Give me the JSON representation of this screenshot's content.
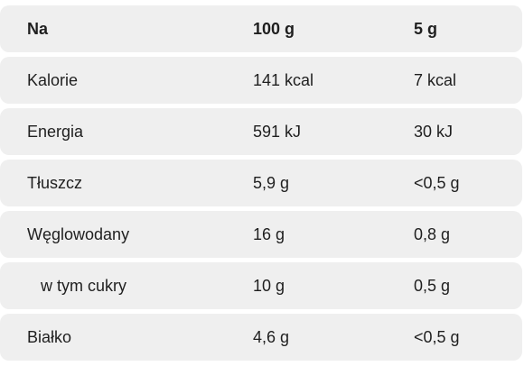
{
  "header": {
    "col1": "Na",
    "col2": "100 g",
    "col3": "5 g"
  },
  "rows": [
    {
      "name": "Kalorie",
      "per100": "141 kcal",
      "per5": "7 kcal"
    },
    {
      "name": "Energia",
      "per100": "591 kJ",
      "per5": "30 kJ"
    },
    {
      "name": "Tłuszcz",
      "per100": "5,9 g",
      "per5": "<0,5 g"
    },
    {
      "name": "Węglowodany",
      "per100": "16 g",
      "per5": "0,8 g"
    },
    {
      "name": "w tym cukry",
      "per100": "10 g",
      "per5": "0,5 g"
    },
    {
      "name": "Białko",
      "per100": "4,6 g",
      "per5": "<0,5 g"
    }
  ]
}
